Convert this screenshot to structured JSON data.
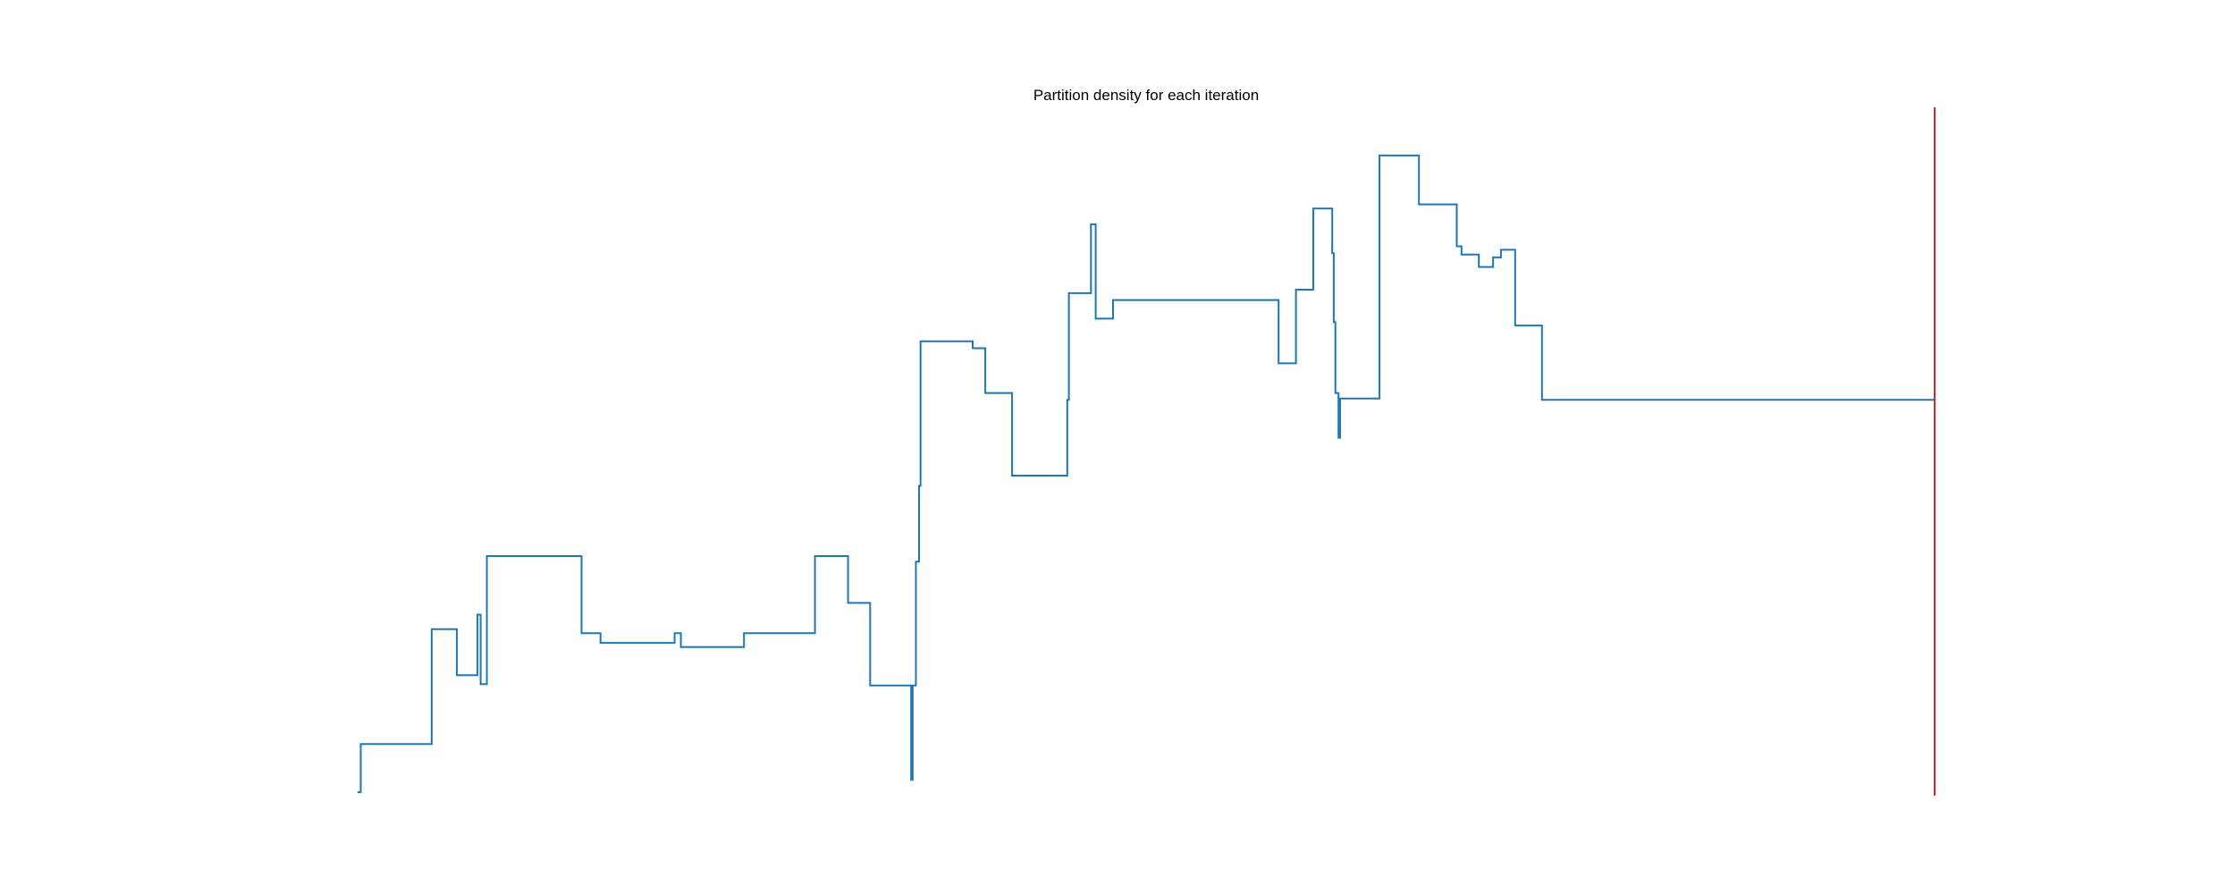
{
  "chart_data": {
    "type": "line",
    "title": "Partition density for each iteration",
    "xlabel": "",
    "ylabel": "",
    "grid": false,
    "axes_visible": false,
    "xlim": [
      0,
      1000
    ],
    "ylim": [
      0,
      1000
    ],
    "series": [
      {
        "color": "#1f77b4",
        "step": true,
        "points": [
          [
            0,
            5
          ],
          [
            2,
            5
          ],
          [
            2,
            75
          ],
          [
            47,
            75
          ],
          [
            47,
            242
          ],
          [
            63,
            242
          ],
          [
            63,
            175
          ],
          [
            76,
            175
          ],
          [
            76,
            263
          ],
          [
            78,
            263
          ],
          [
            78,
            162
          ],
          [
            82,
            162
          ],
          [
            82,
            348
          ],
          [
            142,
            348
          ],
          [
            142,
            236
          ],
          [
            154,
            236
          ],
          [
            154,
            222
          ],
          [
            201,
            222
          ],
          [
            201,
            236
          ],
          [
            205,
            236
          ],
          [
            205,
            216
          ],
          [
            245,
            216
          ],
          [
            245,
            236
          ],
          [
            290,
            236
          ],
          [
            290,
            348
          ],
          [
            311,
            348
          ],
          [
            311,
            280
          ],
          [
            325,
            280
          ],
          [
            325,
            160
          ],
          [
            351,
            160
          ],
          [
            351,
            23
          ],
          [
            352,
            23
          ],
          [
            352,
            160
          ],
          [
            354,
            160
          ],
          [
            354,
            340
          ],
          [
            356,
            340
          ],
          [
            356,
            450
          ],
          [
            357,
            450
          ],
          [
            357,
            660
          ],
          [
            390,
            660
          ],
          [
            390,
            650
          ],
          [
            398,
            650
          ],
          [
            398,
            585
          ],
          [
            415,
            585
          ],
          [
            415,
            465
          ],
          [
            450,
            465
          ],
          [
            450,
            575
          ],
          [
            451,
            575
          ],
          [
            451,
            730
          ],
          [
            465,
            730
          ],
          [
            465,
            830
          ],
          [
            468,
            830
          ],
          [
            468,
            693
          ],
          [
            479,
            693
          ],
          [
            479,
            720
          ],
          [
            493,
            720
          ],
          [
            493,
            720
          ],
          [
            584,
            720
          ],
          [
            584,
            628
          ],
          [
            595,
            628
          ],
          [
            595,
            735
          ],
          [
            606,
            735
          ],
          [
            606,
            853
          ],
          [
            618,
            853
          ],
          [
            618,
            788
          ],
          [
            619,
            788
          ],
          [
            619,
            688
          ],
          [
            620,
            688
          ],
          [
            620,
            585
          ],
          [
            622,
            585
          ],
          [
            622,
            520
          ],
          [
            623,
            520
          ],
          [
            623,
            577
          ],
          [
            648,
            577
          ],
          [
            648,
            930
          ],
          [
            673,
            930
          ],
          [
            673,
            859
          ],
          [
            697,
            859
          ],
          [
            697,
            798
          ],
          [
            700,
            798
          ],
          [
            700,
            786
          ],
          [
            711,
            786
          ],
          [
            711,
            768
          ],
          [
            720,
            768
          ],
          [
            720,
            782
          ],
          [
            725,
            782
          ],
          [
            725,
            793
          ],
          [
            734,
            793
          ],
          [
            734,
            683
          ],
          [
            751,
            683
          ],
          [
            751,
            575
          ],
          [
            1000,
            575
          ]
        ]
      }
    ],
    "annotations": [
      {
        "type": "vertical-line",
        "x": 1000,
        "color": "#d62728"
      }
    ]
  }
}
